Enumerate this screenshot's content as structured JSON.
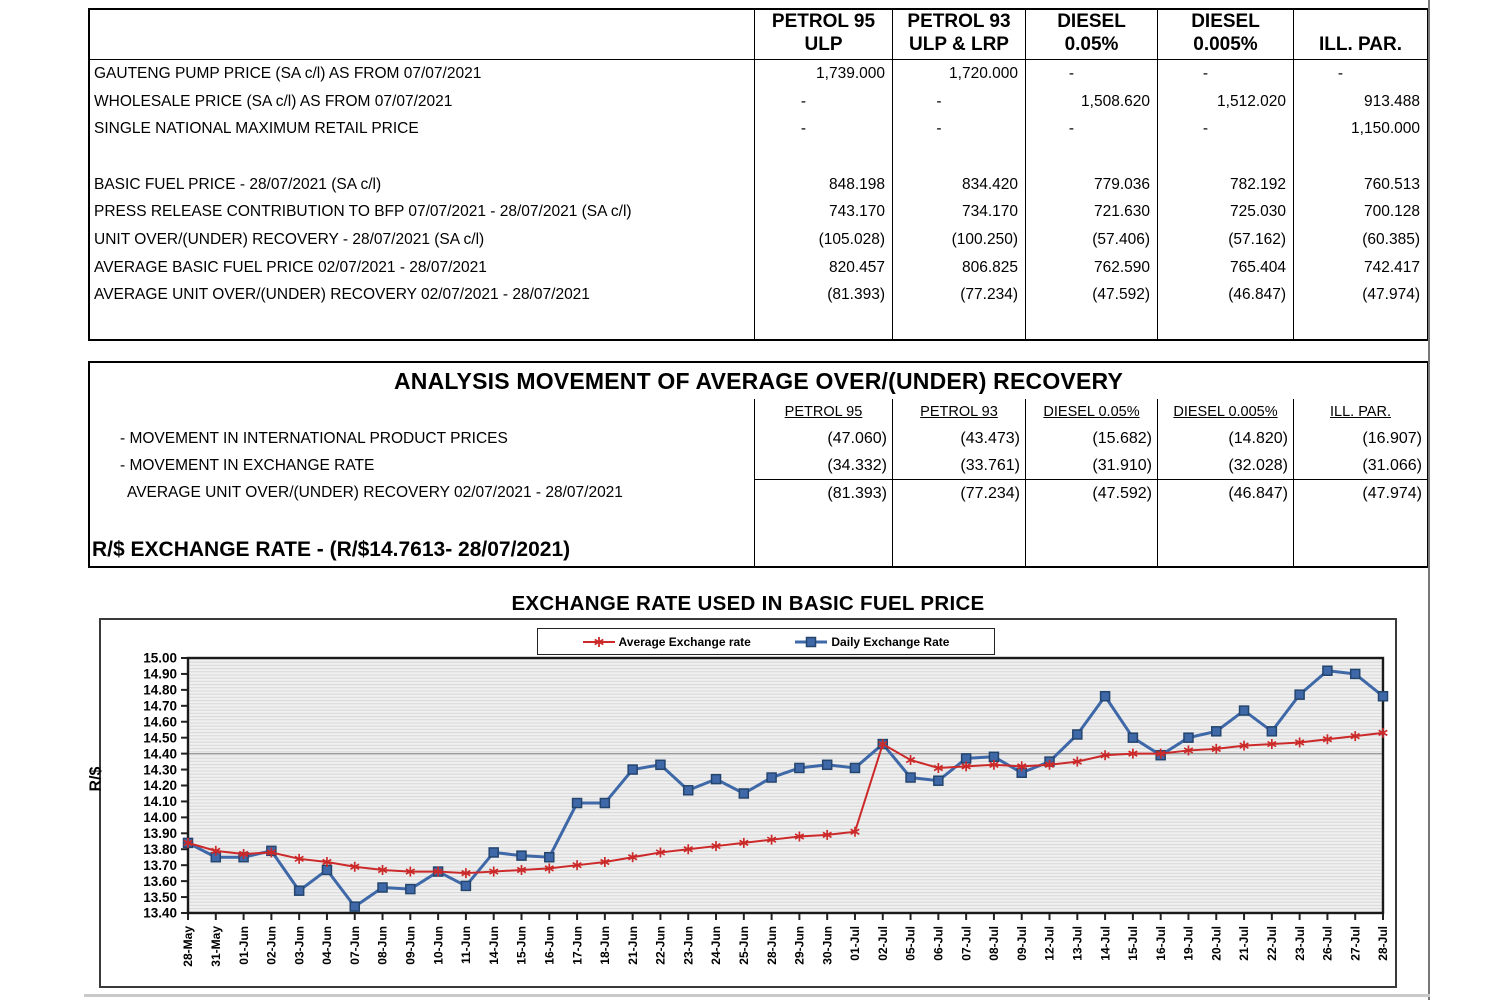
{
  "table1": {
    "columns": [
      {
        "line1": "PETROL 95",
        "line2": "ULP"
      },
      {
        "line1": "PETROL 93",
        "line2": "ULP & LRP"
      },
      {
        "line1": "DIESEL",
        "line2": "0.05%"
      },
      {
        "line1": "DIESEL",
        "line2": "0.005%"
      },
      {
        "line1": "",
        "line2": "ILL. PAR."
      }
    ],
    "rows": [
      {
        "label": "GAUTENG PUMP PRICE (SA c/l) AS FROM 07/07/2021",
        "values": [
          "1,739.000",
          "1,720.000",
          "-",
          "-",
          "-"
        ]
      },
      {
        "label": "WHOLESALE PRICE (SA c/l) AS FROM 07/07/2021",
        "values": [
          "-",
          "-",
          "1,508.620",
          "1,512.020",
          "913.488"
        ]
      },
      {
        "label": "SINGLE NATIONAL MAXIMUM RETAIL PRICE",
        "values": [
          "-",
          "-",
          "-",
          "-",
          "1,150.000"
        ]
      },
      {
        "label": "",
        "values": [
          "",
          "",
          "",
          "",
          ""
        ]
      },
      {
        "label": "BASIC FUEL PRICE - 28/07/2021 (SA c/l)",
        "values": [
          "848.198",
          "834.420",
          "779.036",
          "782.192",
          "760.513"
        ]
      },
      {
        "label": "PRESS RELEASE CONTRIBUTION TO BFP 07/07/2021 - 28/07/2021 (SA c/l)",
        "values": [
          "743.170",
          "734.170",
          "721.630",
          "725.030",
          "700.128"
        ]
      },
      {
        "label": "UNIT OVER/(UNDER) RECOVERY - 28/07/2021 (SA c/l)",
        "values": [
          "(105.028)",
          "(100.250)",
          "(57.406)",
          "(57.162)",
          "(60.385)"
        ]
      },
      {
        "label": "AVERAGE BASIC FUEL PRICE 02/07/2021 - 28/07/2021",
        "values": [
          "820.457",
          "806.825",
          "762.590",
          "765.404",
          "742.417"
        ]
      },
      {
        "label": "AVERAGE UNIT OVER/(UNDER) RECOVERY 02/07/2021 - 28/07/2021",
        "values": [
          "(81.393)",
          "(77.234)",
          "(47.592)",
          "(46.847)",
          "(47.974)"
        ]
      }
    ]
  },
  "table2": {
    "title": "ANALYSIS MOVEMENT OF AVERAGE OVER/(UNDER) RECOVERY",
    "columns": [
      "PETROL 95",
      "PETROL 93",
      "DIESEL 0.05%",
      "DIESEL 0.005%",
      "ILL. PAR."
    ],
    "rows": [
      {
        "label": "- MOVEMENT IN INTERNATIONAL PRODUCT PRICES",
        "total": false,
        "values": [
          "(47.060)",
          "(43.473)",
          "(15.682)",
          "(14.820)",
          "(16.907)"
        ]
      },
      {
        "label": "- MOVEMENT IN EXCHANGE RATE",
        "total": false,
        "values": [
          "(34.332)",
          "(33.761)",
          "(31.910)",
          "(32.028)",
          "(31.066)"
        ]
      },
      {
        "label": "AVERAGE UNIT OVER/(UNDER) RECOVERY 02/07/2021 - 28/07/2021",
        "total": true,
        "values": [
          "(81.393)",
          "(77.234)",
          "(47.592)",
          "(46.847)",
          "(47.974)"
        ]
      }
    ],
    "footer": "R/$ EXCHANGE RATE - (R/$14.7613- 28/07/2021)"
  },
  "chart": {
    "title": "EXCHANGE RATE USED IN BASIC FUEL PRICE",
    "ylabel": "R/$"
  },
  "chart_data": {
    "type": "line",
    "title": "EXCHANGE RATE USED IN BASIC FUEL PRICE",
    "ylabel": "R/$",
    "ylim": [
      13.4,
      15.0
    ],
    "ytick_step": 0.1,
    "grid": "horizontal-fine",
    "emphasis_gridline": 14.4,
    "legend_position": "top-center",
    "categories": [
      "28-May",
      "31-May",
      "01-Jun",
      "02-Jun",
      "03-Jun",
      "04-Jun",
      "07-Jun",
      "08-Jun",
      "09-Jun",
      "10-Jun",
      "11-Jun",
      "14-Jun",
      "15-Jun",
      "16-Jun",
      "17-Jun",
      "18-Jun",
      "21-Jun",
      "22-Jun",
      "23-Jun",
      "24-Jun",
      "25-Jun",
      "28-Jun",
      "29-Jun",
      "30-Jun",
      "01-Jul",
      "02-Jul",
      "05-Jul",
      "06-Jul",
      "07-Jul",
      "08-Jul",
      "09-Jul",
      "12-Jul",
      "13-Jul",
      "14-Jul",
      "15-Jul",
      "16-Jul",
      "19-Jul",
      "20-Jul",
      "21-Jul",
      "22-Jul",
      "23-Jul",
      "26-Jul",
      "27-Jul",
      "28-Jul"
    ],
    "series": [
      {
        "name": "Average Exchange rate",
        "marker": "star",
        "color": "#cc2a2a",
        "values": [
          13.84,
          13.79,
          13.77,
          13.78,
          13.74,
          13.72,
          13.69,
          13.67,
          13.66,
          13.66,
          13.65,
          13.66,
          13.67,
          13.68,
          13.7,
          13.72,
          13.75,
          13.78,
          13.8,
          13.82,
          13.84,
          13.86,
          13.88,
          13.89,
          13.91,
          14.46,
          14.36,
          14.31,
          14.32,
          14.33,
          14.32,
          14.33,
          14.35,
          14.39,
          14.4,
          14.4,
          14.42,
          14.43,
          14.45,
          14.46,
          14.47,
          14.49,
          14.51,
          14.53
        ]
      },
      {
        "name": "Daily Exchange Rate",
        "marker": "square",
        "color": "#3e68a8",
        "marker_border": "#24456e",
        "values": [
          13.84,
          13.75,
          13.75,
          13.79,
          13.54,
          13.67,
          13.44,
          13.56,
          13.55,
          13.66,
          13.57,
          13.78,
          13.76,
          13.75,
          14.09,
          14.09,
          14.3,
          14.33,
          14.17,
          14.24,
          14.15,
          14.25,
          14.31,
          14.33,
          14.31,
          14.46,
          14.25,
          14.23,
          14.37,
          14.38,
          14.28,
          14.35,
          14.52,
          14.76,
          14.5,
          14.39,
          14.5,
          14.54,
          14.67,
          14.54,
          14.77,
          14.92,
          14.9,
          14.76
        ]
      }
    ]
  }
}
